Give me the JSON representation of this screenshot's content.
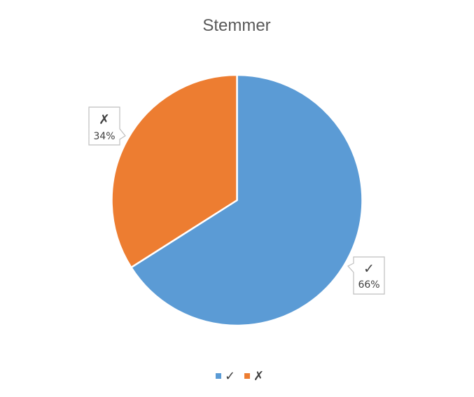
{
  "chart_data": {
    "type": "pie",
    "title": "Stemmer",
    "categories": [
      "✓",
      "✗"
    ],
    "values": [
      66,
      34
    ],
    "data_labels": [
      "66%",
      "34%"
    ],
    "colors": [
      "#5B9BD5",
      "#ED7D31"
    ],
    "start_angle_deg": 0,
    "direction": "clockwise",
    "legend_position": "bottom",
    "legend": [
      {
        "marker_color": "#5B9BD5",
        "label": "✓"
      },
      {
        "marker_color": "#ED7D31",
        "label": "✗"
      }
    ]
  }
}
